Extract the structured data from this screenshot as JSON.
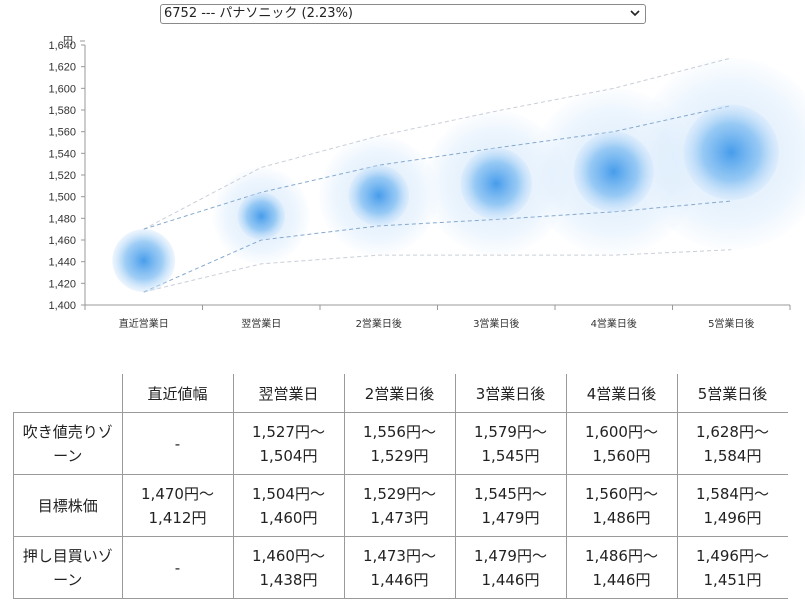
{
  "selector": {
    "value": "6752 --- パナソニック (2.23%)"
  },
  "chart_data": {
    "type": "scatter",
    "yunit": "円",
    "ylim": [
      1400,
      1640
    ],
    "yticks": [
      1400,
      1420,
      1440,
      1460,
      1480,
      1500,
      1520,
      1540,
      1560,
      1580,
      1600,
      1620,
      1640
    ],
    "ytick_labels": [
      "1,400",
      "1,420",
      "1,440",
      "1,460",
      "1,480",
      "1,500",
      "1,520",
      "1,540",
      "1,560",
      "1,580",
      "1,600",
      "1,620",
      "1,640"
    ],
    "categories": [
      "直近営業日",
      "翌営業日",
      "2営業日後",
      "3営業日後",
      "4営業日後",
      "5営業日後"
    ],
    "center": [
      1441,
      1482,
      1501,
      1512,
      1523,
      1541
    ],
    "target_high": [
      1470,
      1504,
      1529,
      1545,
      1560,
      1584
    ],
    "target_low": [
      1412,
      1460,
      1473,
      1479,
      1486,
      1496
    ],
    "sell_high": [
      null,
      1527,
      1556,
      1579,
      1600,
      1628
    ],
    "buy_low": [
      null,
      1438,
      1446,
      1446,
      1446,
      1451
    ]
  },
  "table": {
    "headers": [
      "",
      "直近値幅",
      "翌営業日",
      "2営業日後",
      "3営業日後",
      "4営業日後",
      "5営業日後"
    ],
    "rows": [
      {
        "label": [
          "吹き値売りゾ",
          "ーン"
        ],
        "cells": [
          [
            "-"
          ],
          [
            "1,527円〜",
            "1,504円"
          ],
          [
            "1,556円〜",
            "1,529円"
          ],
          [
            "1,579円〜",
            "1,545円"
          ],
          [
            "1,600円〜",
            "1,560円"
          ],
          [
            "1,628円〜",
            "1,584円"
          ]
        ]
      },
      {
        "label": [
          "目標株価"
        ],
        "cells": [
          [
            "1,470円〜",
            "1,412円"
          ],
          [
            "1,504円〜",
            "1,460円"
          ],
          [
            "1,529円〜",
            "1,473円"
          ],
          [
            "1,545円〜",
            "1,479円"
          ],
          [
            "1,560円〜",
            "1,486円"
          ],
          [
            "1,584円〜",
            "1,496円"
          ]
        ]
      },
      {
        "label": [
          "押し目買いゾ",
          "ーン"
        ],
        "cells": [
          [
            "-"
          ],
          [
            "1,460円〜",
            "1,438円"
          ],
          [
            "1,473円〜",
            "1,446円"
          ],
          [
            "1,479円〜",
            "1,446円"
          ],
          [
            "1,486円〜",
            "1,446円"
          ],
          [
            "1,496円〜",
            "1,451円"
          ]
        ]
      }
    ]
  }
}
